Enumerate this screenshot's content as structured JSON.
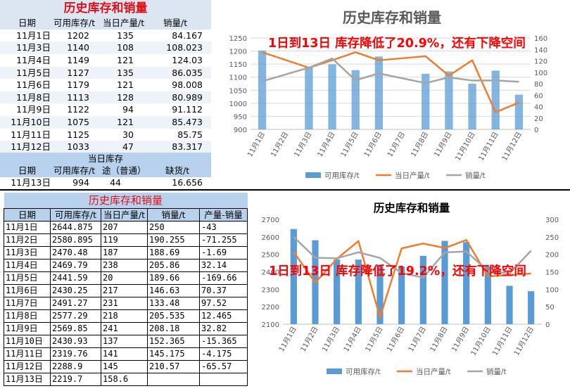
{
  "top_table": {
    "title": "历史库存和销量",
    "headers": [
      "日期",
      "可用库存/t",
      "当日产量/t",
      "销量/t"
    ],
    "rows": [
      [
        "11月1日",
        "1202",
        "135",
        "84.167"
      ],
      [
        "11月3日",
        "1140",
        "108",
        "108.023"
      ],
      [
        "11月4日",
        "1149",
        "121",
        "124.03"
      ],
      [
        "11月5日",
        "1127",
        "135",
        "86.035"
      ],
      [
        "11月6日",
        "1179",
        "121",
        "98.008"
      ],
      [
        "11月8日",
        "1113",
        "128",
        "80.989"
      ],
      [
        "11月9日",
        "1122",
        "94",
        "91.112"
      ],
      [
        "11月10日",
        "1075",
        "121",
        "85.473"
      ],
      [
        "11月11日",
        "1125",
        "30",
        "85.75"
      ],
      [
        "11月12日",
        "1033",
        "47",
        "83.317"
      ]
    ],
    "current_title": "当日库存",
    "current_headers": [
      "日期",
      "可用库存/t",
      "途（普通）",
      "缺货/t"
    ],
    "current_row": [
      "11月13日",
      "994",
      "44",
      "16.656"
    ]
  },
  "bottom_table": {
    "title": "历史库存和销量",
    "headers": [
      "日期",
      "可用库存/t",
      "当日产量/t",
      "销量/t",
      "产量-销量"
    ],
    "rows": [
      [
        "11月1日",
        "2644.875",
        "207",
        "250",
        "-43"
      ],
      [
        "11月2日",
        "2580.895",
        "119",
        "190.255",
        "-71.255"
      ],
      [
        "11月3日",
        "2470.48",
        "187",
        "188.69",
        "-1.69"
      ],
      [
        "11月4日",
        "2469.79",
        "238",
        "205.86",
        "32.14"
      ],
      [
        "11月5日",
        "2441.59",
        "20",
        "189.66",
        "-169.66"
      ],
      [
        "11月6日",
        "2430.25",
        "217",
        "146.63",
        "70.37"
      ],
      [
        "11月7日",
        "2491.27",
        "231",
        "133.48",
        "97.52"
      ],
      [
        "11月8日",
        "2577.29",
        "218",
        "205.535",
        "12.465"
      ],
      [
        "11月9日",
        "2569.85",
        "241",
        "208.18",
        "32.82"
      ],
      [
        "11月10日",
        "2430.93",
        "137",
        "152.365",
        "-15.365"
      ],
      [
        "11月11日",
        "2319.76",
        "141",
        "145.175",
        "-4.175"
      ],
      [
        "11月12日",
        "2288.9",
        "145",
        "210.57",
        "-65.57"
      ],
      [
        "11月13日",
        "2219.7",
        "158.6",
        "",
        ""
      ]
    ]
  },
  "chart_data": [
    {
      "type": "bar",
      "title": "历史库存和销量",
      "annotation": "1日到13日 库存降低了20.9%，还有下降空间",
      "categories": [
        "11月1日",
        "11月2日",
        "11月3日",
        "11月4日",
        "11月5日",
        "11月6日",
        "11月7日",
        "11月8日",
        "11月9日",
        "11月10日",
        "11月11日",
        "11月12日"
      ],
      "series": [
        {
          "name": "可用库存/t",
          "kind": "bar",
          "axis": "left",
          "color": "#5b9bd5",
          "values": [
            1202,
            null,
            1140,
            1149,
            1127,
            1179,
            null,
            1113,
            1122,
            1075,
            1125,
            1033
          ]
        },
        {
          "name": "当日产量/t",
          "kind": "line",
          "axis": "right",
          "color": "#ed7d31",
          "values": [
            135,
            null,
            108,
            121,
            135,
            121,
            null,
            128,
            94,
            121,
            30,
            47
          ]
        },
        {
          "name": "销量/t",
          "kind": "line",
          "axis": "right",
          "color": "#a5a5a5",
          "values": [
            84.167,
            null,
            108.023,
            124.03,
            86.035,
            98.008,
            null,
            80.989,
            91.112,
            85.473,
            85.75,
            83.317
          ]
        }
      ],
      "y_left": {
        "min": 900,
        "max": 1250,
        "step": 50
      },
      "y_right": {
        "min": 0,
        "max": 160,
        "step": 20
      },
      "legend": "bottom",
      "grid": true
    },
    {
      "type": "bar",
      "title": "历史库存和销量",
      "annotation": "1日到13日 库存降低了19.2%，还有下降空间",
      "categories": [
        "11月1日",
        "11月2日",
        "11月3日",
        "11月4日",
        "11月5日",
        "11月6日",
        "11月7日",
        "11月8日",
        "11月9日",
        "11月10日",
        "11月11日",
        "11月12日"
      ],
      "series": [
        {
          "name": "可用库存/t",
          "kind": "bar",
          "axis": "left",
          "color": "#5b9bd5",
          "values": [
            2644.875,
            2580.895,
            2470.48,
            2469.79,
            2441.59,
            2430.25,
            2491.27,
            2577.29,
            2569.85,
            2430.93,
            2319.76,
            2288.9
          ]
        },
        {
          "name": "当日产量/t",
          "kind": "line",
          "axis": "right",
          "color": "#ed7d31",
          "values": [
            207,
            119,
            187,
            238,
            20,
            217,
            231,
            218,
            241,
            137,
            141,
            145
          ]
        },
        {
          "name": "销量/t",
          "kind": "line",
          "axis": "right",
          "color": "#a5a5a5",
          "values": [
            250,
            190.255,
            188.69,
            205.86,
            189.66,
            146.63,
            133.48,
            205.535,
            208.18,
            152.365,
            145.175,
            210.57
          ]
        }
      ],
      "y_left": {
        "min": 2100,
        "max": 2700,
        "step": 100
      },
      "y_right": {
        "min": 0,
        "max": 300,
        "step": 50
      },
      "legend": "bottom",
      "grid": false
    }
  ]
}
